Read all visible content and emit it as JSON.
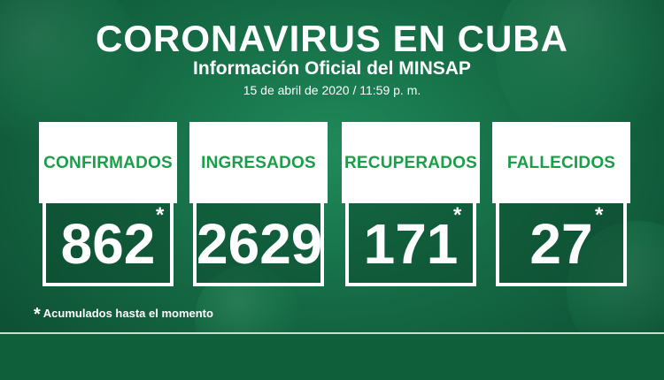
{
  "header": {
    "title": "CORONAVIRUS EN CUBA",
    "subtitle": "Información Oficial del MINSAP",
    "date": "15 de abril de 2020 / 11:59 p. m."
  },
  "cards": [
    {
      "label": "CONFIRMADOS",
      "value": "862",
      "asterisk": "*"
    },
    {
      "label": "INGRESADOS",
      "value": "2629",
      "asterisk": ""
    },
    {
      "label": "RECUPERADOS",
      "value": "171",
      "asterisk": "*"
    },
    {
      "label": "FALLECIDOS",
      "value": "27",
      "asterisk": "*"
    }
  ],
  "footnote": {
    "star": "*",
    "text": "Acumulados hasta el momento"
  },
  "colors": {
    "label_green": "#1a9e48",
    "background": "#156b45"
  }
}
